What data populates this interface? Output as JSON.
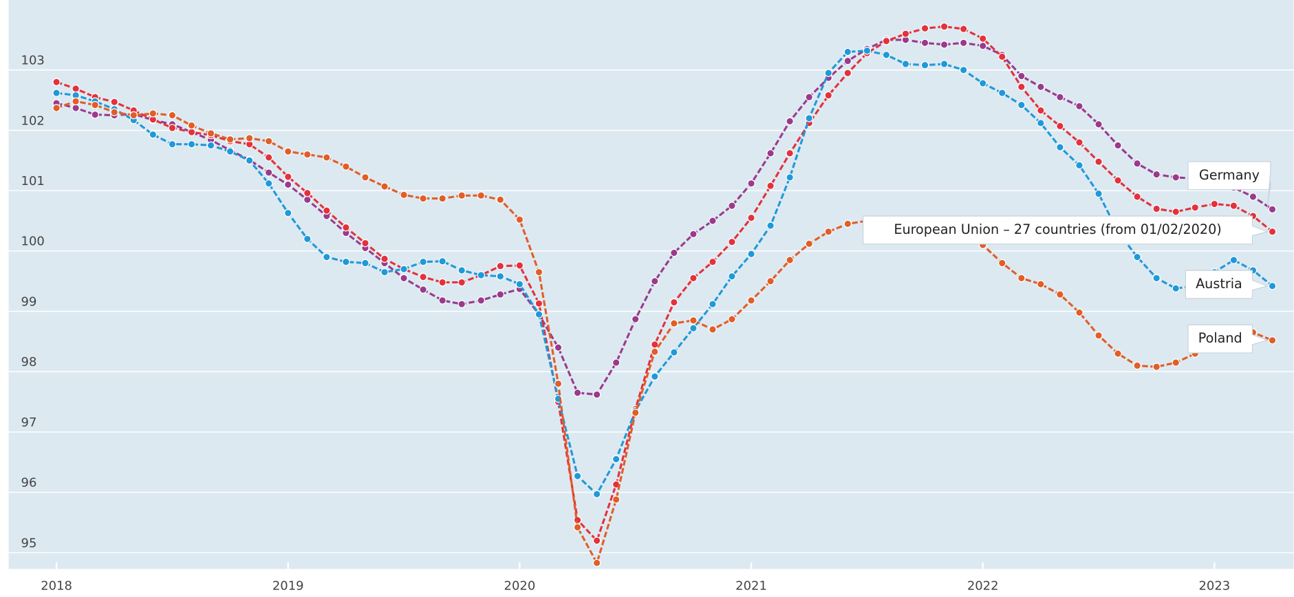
{
  "chart_data": {
    "type": "line",
    "categories": [
      "2018",
      null,
      null,
      null,
      null,
      null,
      null,
      null,
      null,
      null,
      null,
      null,
      "2019",
      null,
      null,
      null,
      null,
      null,
      null,
      null,
      null,
      null,
      null,
      null,
      "2020",
      null,
      null,
      null,
      null,
      null,
      null,
      null,
      null,
      null,
      null,
      null,
      "2021",
      null,
      null,
      null,
      null,
      null,
      null,
      null,
      null,
      null,
      null,
      null,
      "2022",
      null,
      null,
      null,
      null,
      null,
      null,
      null,
      null,
      null,
      null,
      null,
      "2023",
      null,
      null,
      null
    ],
    "series": [
      {
        "name": "Germany",
        "color": "#993b8d",
        "values": [
          102.45,
          102.37,
          102.26,
          102.25,
          102.27,
          102.17,
          102.1,
          101.97,
          101.84,
          101.67,
          101.51,
          101.3,
          101.1,
          100.85,
          100.58,
          100.3,
          100.05,
          99.8,
          99.55,
          99.36,
          99.18,
          99.12,
          99.18,
          99.28,
          99.37,
          98.95,
          98.4,
          97.65,
          97.62,
          98.15,
          98.87,
          99.5,
          99.97,
          100.28,
          100.5,
          100.75,
          101.12,
          101.62,
          102.15,
          102.55,
          102.87,
          103.15,
          103.35,
          103.5,
          103.5,
          103.45,
          103.42,
          103.45,
          103.4,
          103.25,
          102.9,
          102.72,
          102.55,
          102.4,
          102.1,
          101.75,
          101.45,
          101.27,
          101.22,
          101.2,
          101.15,
          101.05,
          100.9,
          100.69
        ]
      },
      {
        "name": "European Union – 27 countries (from 01/02/2020)",
        "color": "#e2323c",
        "values": [
          102.8,
          102.69,
          102.55,
          102.47,
          102.33,
          102.18,
          102.04,
          101.97,
          101.92,
          101.82,
          101.77,
          101.55,
          101.23,
          100.96,
          100.67,
          100.39,
          100.13,
          99.87,
          99.7,
          99.57,
          99.48,
          99.48,
          99.6,
          99.75,
          99.76,
          99.13,
          97.5,
          95.54,
          95.2,
          96.13,
          97.38,
          98.45,
          99.15,
          99.55,
          99.82,
          100.15,
          100.55,
          101.08,
          101.62,
          102.12,
          102.58,
          102.95,
          103.28,
          103.48,
          103.6,
          103.69,
          103.72,
          103.68,
          103.52,
          103.22,
          102.72,
          102.33,
          102.07,
          101.8,
          101.48,
          101.17,
          100.9,
          100.7,
          100.65,
          100.72,
          100.78,
          100.75,
          100.58,
          100.32
        ]
      },
      {
        "name": "Austria",
        "color": "#1f99d8",
        "values": [
          102.62,
          102.58,
          102.48,
          102.35,
          102.17,
          101.93,
          101.77,
          101.77,
          101.75,
          101.65,
          101.5,
          101.12,
          100.63,
          100.2,
          99.9,
          99.82,
          99.8,
          99.65,
          99.7,
          99.82,
          99.83,
          99.68,
          99.6,
          99.58,
          99.45,
          98.95,
          97.55,
          96.27,
          95.97,
          96.55,
          97.35,
          97.92,
          98.32,
          98.72,
          99.12,
          99.58,
          99.95,
          100.42,
          101.22,
          102.2,
          102.95,
          103.3,
          103.32,
          103.25,
          103.1,
          103.08,
          103.1,
          103.0,
          102.78,
          102.62,
          102.42,
          102.12,
          101.72,
          101.42,
          100.95,
          100.32,
          99.9,
          99.55,
          99.38,
          99.42,
          99.65,
          99.85,
          99.68,
          99.42
        ]
      },
      {
        "name": "Poland",
        "color": "#e05e28",
        "values": [
          102.37,
          102.48,
          102.42,
          102.3,
          102.25,
          102.28,
          102.25,
          102.08,
          101.95,
          101.85,
          101.87,
          101.82,
          101.65,
          101.6,
          101.55,
          101.4,
          101.22,
          101.07,
          100.93,
          100.87,
          100.87,
          100.92,
          100.92,
          100.85,
          100.52,
          99.65,
          97.8,
          95.42,
          94.83,
          95.88,
          97.32,
          98.33,
          98.8,
          98.85,
          98.7,
          98.87,
          99.18,
          99.5,
          99.85,
          100.12,
          100.32,
          100.45,
          100.5,
          100.48,
          100.45,
          100.4,
          100.35,
          100.25,
          100.1,
          99.8,
          99.55,
          99.45,
          99.28,
          98.98,
          98.6,
          98.3,
          98.1,
          98.08,
          98.15,
          98.3,
          98.5,
          98.65,
          98.65,
          98.52
        ]
      }
    ],
    "ylim": [
      94.73,
      104.16
    ],
    "yticks": [
      95,
      96,
      97,
      98,
      99,
      100,
      101,
      102,
      103
    ],
    "grid": true
  }
}
